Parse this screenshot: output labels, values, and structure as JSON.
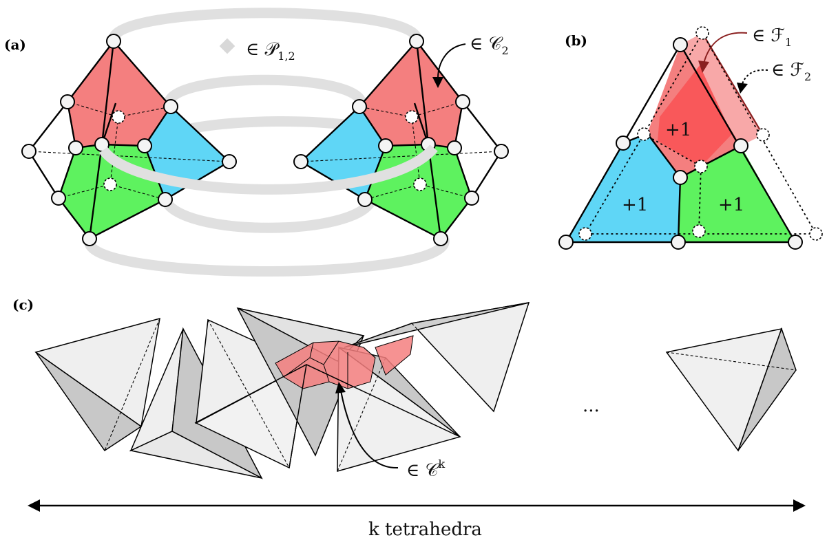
{
  "panels": {
    "a": {
      "label": "(a)",
      "chain_label": "∈ 𝒫",
      "chain_sub": "1,2",
      "cell_label": "∈ 𝒞",
      "cell_sub": "2"
    },
    "b": {
      "label": "(b)",
      "f1_label": "∈ ℱ",
      "f1_sub": "1",
      "f2_label": "∈ ℱ",
      "f2_sub": "2",
      "count_top": "+1",
      "count_left": "+1",
      "count_right": "+1"
    },
    "c": {
      "label": "(c)",
      "ellipsis": "...",
      "complex_label": "∈ 𝒞",
      "complex_sup": "k",
      "axis_label": "k tetrahedra"
    }
  },
  "colors": {
    "red": "#f47f7f",
    "red_strong": "#f9585a",
    "blue": "#5fd6f6",
    "green": "#5ef25f",
    "gray_ring": "#e0e0e0",
    "tetra_light": "#efefef",
    "tetra_dark": "#c8c8c8"
  }
}
